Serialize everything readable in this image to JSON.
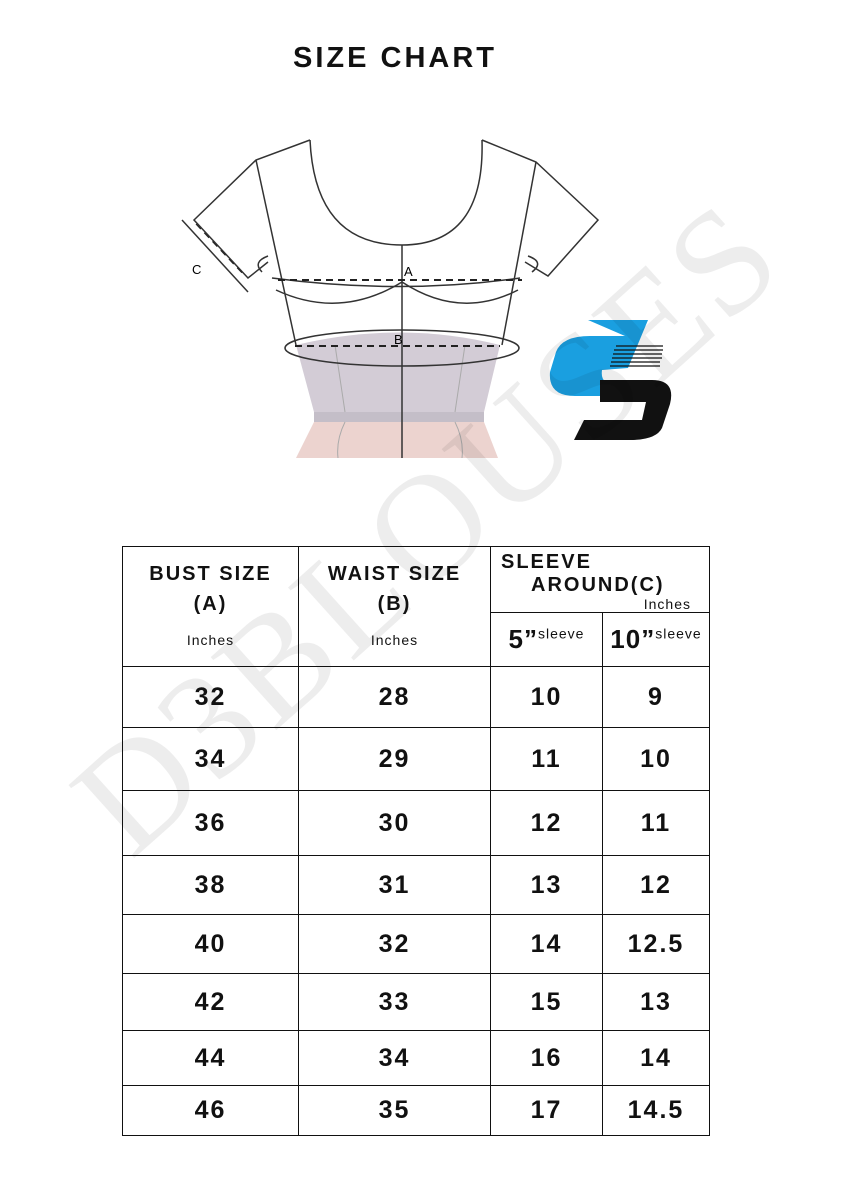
{
  "title": "SIZE CHART",
  "watermark": "D3BLOUSES",
  "diagram": {
    "labels": {
      "a": "A",
      "b": "B",
      "c": "C"
    }
  },
  "logo": {
    "name": "d3-logo",
    "colors": {
      "blue": "#1a9fe0",
      "black": "#111111"
    }
  },
  "table": {
    "headers": {
      "bust": {
        "label": "BUST SIZE",
        "code": "(A)",
        "unit": "Inches"
      },
      "waist": {
        "label": "WAIST SIZE",
        "code": "(B)",
        "unit": "Inches"
      },
      "sleeve": {
        "line1": "SLEEVE",
        "line2": "AROUND",
        "code": "(C)",
        "unit": "Inches",
        "sub": [
          {
            "num": "5”",
            "text": "sleeve"
          },
          {
            "num": "10”",
            "text": "sleeve"
          }
        ]
      }
    },
    "rows": [
      [
        "32",
        "28",
        "10",
        "9"
      ],
      [
        "34",
        "29",
        "11",
        "10"
      ],
      [
        "36",
        "30",
        "12",
        "11"
      ],
      [
        "38",
        "31",
        "13",
        "12"
      ],
      [
        "40",
        "32",
        "14",
        "12.5"
      ],
      [
        "42",
        "33",
        "15",
        "13"
      ],
      [
        "44",
        "34",
        "16",
        "14"
      ],
      [
        "46",
        "35",
        "17",
        "14.5"
      ]
    ]
  }
}
